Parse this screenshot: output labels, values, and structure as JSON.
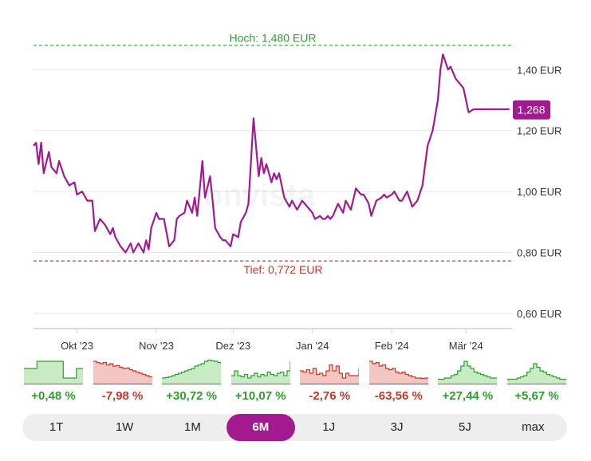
{
  "chart_data": {
    "type": "line",
    "currency": "EUR",
    "high_label": "Hoch: 1,480 EUR",
    "low_label": "Tief: 0,772 EUR",
    "high": 1.48,
    "low": 0.772,
    "current_label": "1,268",
    "current": 1.268,
    "ylim": [
      0.55,
      1.55
    ],
    "grid": true,
    "y_ticks": [
      {
        "value": 1.4,
        "label": "1,40 EUR"
      },
      {
        "value": 1.2,
        "label": "1,20 EUR"
      },
      {
        "value": 1.0,
        "label": "1,00 EUR"
      },
      {
        "value": 0.8,
        "label": "0,80 EUR"
      },
      {
        "value": 0.6,
        "label": "0,60 EUR"
      }
    ],
    "x_ticks": [
      {
        "date": "2023-10-01",
        "label": "Okt '23"
      },
      {
        "date": "2023-11-01",
        "label": "Nov '23"
      },
      {
        "date": "2023-12-01",
        "label": "Dez '23"
      },
      {
        "date": "2024-01-01",
        "label": "Jan '24"
      },
      {
        "date": "2024-02-01",
        "label": "Feb '24"
      },
      {
        "date": "2024-03-01",
        "label": "Mär '24"
      }
    ],
    "xlim": [
      "2023-09-14",
      "2024-03-19"
    ],
    "line_color": "#a3198f",
    "series": [
      {
        "dates": [
          "2023-09-14",
          "2023-09-15",
          "2023-09-16",
          "2023-09-17",
          "2023-09-18",
          "2023-09-20",
          "2023-09-21",
          "2023-09-23",
          "2023-09-24",
          "2023-09-26",
          "2023-09-28",
          "2023-09-30",
          "2023-10-01",
          "2023-10-03",
          "2023-10-05",
          "2023-10-07",
          "2023-10-08",
          "2023-10-10",
          "2023-10-12",
          "2023-10-14",
          "2023-10-15",
          "2023-10-16",
          "2023-10-18",
          "2023-10-19",
          "2023-10-20",
          "2023-10-22",
          "2023-10-23",
          "2023-10-25",
          "2023-10-27",
          "2023-10-28",
          "2023-10-29",
          "2023-10-30",
          "2023-11-01",
          "2023-11-02",
          "2023-11-03",
          "2023-11-04",
          "2023-11-06",
          "2023-11-08",
          "2023-11-09",
          "2023-11-10",
          "2023-11-12",
          "2023-11-13",
          "2023-11-15",
          "2023-11-16",
          "2023-11-17",
          "2023-11-19",
          "2023-11-20",
          "2023-11-22",
          "2023-11-23",
          "2023-11-24",
          "2023-11-26",
          "2023-11-27",
          "2023-11-28",
          "2023-11-30",
          "2023-12-01",
          "2023-12-03",
          "2023-12-04",
          "2023-12-06",
          "2023-12-07",
          "2023-12-08",
          "2023-12-09",
          "2023-12-11",
          "2023-12-12",
          "2023-12-13",
          "2023-12-14",
          "2023-12-16",
          "2023-12-17",
          "2023-12-18",
          "2023-12-19",
          "2023-12-20",
          "2023-12-21",
          "2023-12-23",
          "2023-12-24",
          "2023-12-26",
          "2023-12-28",
          "2023-12-29",
          "2023-12-31",
          "2024-01-01",
          "2024-01-02",
          "2024-01-04",
          "2024-01-05",
          "2024-01-06",
          "2024-01-07",
          "2024-01-08",
          "2024-01-09",
          "2024-01-11",
          "2024-01-13",
          "2024-01-14",
          "2024-01-16",
          "2024-01-18",
          "2024-01-20",
          "2024-01-21",
          "2024-01-23",
          "2024-01-24",
          "2024-01-26",
          "2024-01-28",
          "2024-01-29",
          "2024-01-30",
          "2024-02-01",
          "2024-02-02",
          "2024-02-04",
          "2024-02-05",
          "2024-02-07",
          "2024-02-09",
          "2024-02-11",
          "2024-02-13",
          "2024-02-15",
          "2024-02-17",
          "2024-02-19",
          "2024-02-20",
          "2024-02-21",
          "2024-02-23",
          "2024-02-24",
          "2024-02-26",
          "2024-02-28",
          "2024-02-29",
          "2024-03-02",
          "2024-03-04",
          "2024-03-05",
          "2024-03-06",
          "2024-03-07",
          "2024-03-09",
          "2024-03-10",
          "2024-03-12",
          "2024-03-14",
          "2024-03-15",
          "2024-03-16",
          "2024-03-17",
          "2024-03-18"
        ],
        "values": [
          1.15,
          1.16,
          1.09,
          1.16,
          1.06,
          1.13,
          1.08,
          1.06,
          1.1,
          1.05,
          1.02,
          1.03,
          0.99,
          1.0,
          0.97,
          0.97,
          0.87,
          0.91,
          0.89,
          0.86,
          0.88,
          0.85,
          0.82,
          0.81,
          0.8,
          0.83,
          0.8,
          0.83,
          0.8,
          0.84,
          0.81,
          0.88,
          0.93,
          0.91,
          0.91,
          0.91,
          0.82,
          0.84,
          0.91,
          0.92,
          0.93,
          0.97,
          0.93,
          0.98,
          0.92,
          1.1,
          0.98,
          1.05,
          0.97,
          0.88,
          0.85,
          0.84,
          0.84,
          0.82,
          0.86,
          0.85,
          0.9,
          0.93,
          0.96,
          1.1,
          1.24,
          1.05,
          1.11,
          1.06,
          1.09,
          1.03,
          1.06,
          1.04,
          1.06,
          1.02,
          0.98,
          0.95,
          0.97,
          0.94,
          0.97,
          0.96,
          0.94,
          0.93,
          0.91,
          0.92,
          0.91,
          0.91,
          0.92,
          0.91,
          0.92,
          0.96,
          0.93,
          0.97,
          0.94,
          1.01,
          0.99,
          0.99,
          0.96,
          0.92,
          0.97,
          0.98,
          0.99,
          0.98,
          0.99,
          1.0,
          0.97,
          0.97,
          1.0,
          0.95,
          0.97,
          1.02,
          1.15,
          1.2,
          1.3,
          1.4,
          1.45,
          1.4,
          1.41,
          1.37,
          1.35,
          1.34,
          1.26,
          1.27,
          1.27,
          1.27,
          1.27,
          1.27,
          1.27,
          1.27,
          1.27,
          1.27,
          1.27,
          1.27,
          1.27
        ]
      }
    ]
  },
  "mini_charts": [
    {
      "change": "+0,48 %",
      "trend": "pos",
      "color": "#2e9e2e",
      "fill": "#c9ebc4",
      "values": [
        0.6,
        0.6,
        0.6,
        0.6,
        0.9,
        0.9,
        0.9,
        0.9,
        0.9,
        0.9,
        0.9,
        0.9,
        0.2,
        0.2,
        0.2,
        0.2,
        0.6,
        0.6,
        0.6
      ]
    },
    {
      "change": "-7,98 %",
      "trend": "neg",
      "color": "#c0392b",
      "fill": "#f3c6c1",
      "values": [
        0.9,
        0.85,
        0.8,
        0.85,
        0.75,
        0.8,
        0.7,
        0.72,
        0.65,
        0.6,
        0.62,
        0.55,
        0.5,
        0.45,
        0.4,
        0.35,
        0.3,
        0.25,
        0.28
      ]
    },
    {
      "change": "+30,72 %",
      "trend": "pos",
      "color": "#2e9e2e",
      "fill": "#c9ebc4",
      "values": [
        0.2,
        0.22,
        0.25,
        0.3,
        0.35,
        0.4,
        0.45,
        0.5,
        0.55,
        0.6,
        0.7,
        0.75,
        0.8,
        0.9,
        0.95,
        0.92,
        0.9,
        0.85,
        0.8
      ]
    },
    {
      "change": "+10,07 %",
      "trend": "pos",
      "color": "#2e9e2e",
      "fill": "#c9ebc4",
      "values": [
        0.3,
        0.5,
        0.3,
        0.25,
        0.35,
        0.2,
        0.3,
        0.4,
        0.25,
        0.35,
        0.3,
        0.45,
        0.35,
        0.3,
        0.4,
        0.45,
        0.3,
        0.5,
        0.9
      ]
    },
    {
      "change": "-2,76 %",
      "trend": "neg",
      "color": "#c0392b",
      "fill": "#f3c6c1",
      "values": [
        0.5,
        0.45,
        0.55,
        0.4,
        0.6,
        0.35,
        0.4,
        0.3,
        0.5,
        0.75,
        0.5,
        0.7,
        0.4,
        0.2,
        0.4,
        0.3,
        0.3,
        0.3,
        0.6
      ]
    },
    {
      "change": "-63,56 %",
      "trend": "neg",
      "color": "#c0392b",
      "fill": "#f3c6c1",
      "values": [
        0.9,
        0.8,
        0.85,
        0.7,
        0.75,
        0.6,
        0.55,
        0.6,
        0.45,
        0.4,
        0.45,
        0.35,
        0.3,
        0.25,
        0.2,
        0.2,
        0.18,
        0.2,
        0.2
      ]
    },
    {
      "change": "+27,44 %",
      "trend": "pos",
      "color": "#2e9e2e",
      "fill": "#c9ebc4",
      "values": [
        0.15,
        0.15,
        0.2,
        0.2,
        0.3,
        0.35,
        0.5,
        0.7,
        0.9,
        0.7,
        0.6,
        0.45,
        0.4,
        0.35,
        0.3,
        0.25,
        0.2,
        0.2,
        0.2
      ]
    },
    {
      "change": "+5,67 %",
      "trend": "pos",
      "color": "#2e9e2e",
      "fill": "#c9ebc4",
      "values": [
        0.15,
        0.15,
        0.15,
        0.2,
        0.25,
        0.3,
        0.45,
        0.6,
        0.8,
        0.65,
        0.5,
        0.45,
        0.35,
        0.3,
        0.25,
        0.2,
        0.15,
        0.15,
        0.15
      ]
    }
  ],
  "tabs": [
    {
      "label": "1T",
      "active": false
    },
    {
      "label": "1W",
      "active": false
    },
    {
      "label": "1M",
      "active": false
    },
    {
      "label": "6M",
      "active": true
    },
    {
      "label": "1J",
      "active": false
    },
    {
      "label": "3J",
      "active": false
    },
    {
      "label": "5J",
      "active": false
    },
    {
      "label": "max",
      "active": false
    }
  ]
}
